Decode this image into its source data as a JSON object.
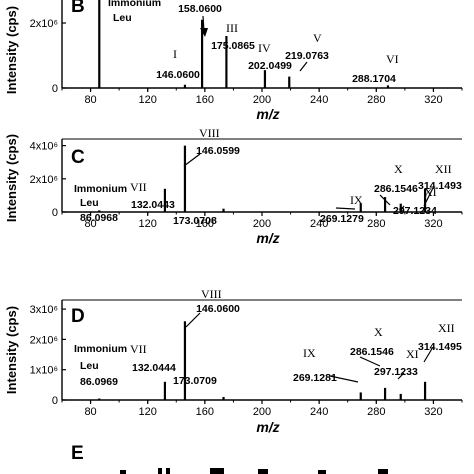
{
  "chart_data": [
    {
      "panel": "B",
      "type": "bar",
      "xlabel": "m/z",
      "ylabel": "Intensity (cps)",
      "xlim": [
        60,
        340
      ],
      "xticks": [
        "80",
        "120",
        "160",
        "200",
        "240",
        "280",
        "320"
      ],
      "ylim": [
        0,
        4.4
      ],
      "yticks": [
        "0",
        "2x10⁶"
      ],
      "peaks": [
        {
          "mz": 86.1,
          "intensity": 4.8
        },
        {
          "mz": 146.06,
          "intensity": 0.1
        },
        {
          "mz": 158.06,
          "intensity": 2.1
        },
        {
          "mz": 175.09,
          "intensity": 1.6
        },
        {
          "mz": 202.05,
          "intensity": 0.55
        },
        {
          "mz": 219.08,
          "intensity": 0.35
        },
        {
          "mz": 288.17,
          "intensity": 0.08
        }
      ],
      "annotations": [
        {
          "id": "immonium",
          "lines": [
            "Immonium",
            "Leu"
          ]
        },
        {
          "id": "p158",
          "roman": "",
          "value": "158.0600"
        },
        {
          "id": "p146",
          "roman": "I",
          "value": "146.0600"
        },
        {
          "id": "p175",
          "roman": "III",
          "value": "175.0865"
        },
        {
          "id": "p202",
          "roman": "IV",
          "value": "202.0499"
        },
        {
          "id": "p219",
          "roman": "V",
          "value": "219.0763"
        },
        {
          "id": "p288",
          "roman": "VI",
          "value": "288.1704"
        }
      ]
    },
    {
      "panel": "C",
      "type": "bar",
      "xlabel": "m/z",
      "ylabel": "Intensity (cps)",
      "xlim": [
        60,
        340
      ],
      "xticks": [
        "80",
        "120",
        "160",
        "200",
        "240",
        "280",
        "320"
      ],
      "ylim": [
        0,
        4.4
      ],
      "yticks": [
        "0",
        "2x10⁶",
        "4x10⁶"
      ],
      "peaks": [
        {
          "mz": 86.1,
          "intensity": 0.1
        },
        {
          "mz": 132.04,
          "intensity": 1.4
        },
        {
          "mz": 146.06,
          "intensity": 4.0
        },
        {
          "mz": 173.07,
          "intensity": 0.2
        },
        {
          "mz": 269.13,
          "intensity": 0.5
        },
        {
          "mz": 286.15,
          "intensity": 0.9
        },
        {
          "mz": 297.12,
          "intensity": 0.5
        },
        {
          "mz": 314.15,
          "intensity": 1.4
        }
      ],
      "annotations": [
        {
          "id": "immonium",
          "lines": [
            "Immonium",
            "Leu",
            "86.0968"
          ]
        },
        {
          "id": "p132",
          "roman": "VII",
          "value": "132.0443"
        },
        {
          "id": "p146",
          "roman": "VIII",
          "value": "146.0599"
        },
        {
          "id": "p173",
          "roman": "",
          "value": "173.0708"
        },
        {
          "id": "p269",
          "roman": "IX",
          "value": "269.1279"
        },
        {
          "id": "p286",
          "roman": "X",
          "value": "286.1546"
        },
        {
          "id": "p297",
          "roman": "XI",
          "value": "297.1234"
        },
        {
          "id": "p314",
          "roman": "XII",
          "value": "314.1493"
        }
      ]
    },
    {
      "panel": "D",
      "type": "bar",
      "xlabel": "m/z",
      "ylabel": "Intensity (cps)",
      "xlim": [
        60,
        340
      ],
      "xticks": [
        "80",
        "120",
        "160",
        "200",
        "240",
        "280",
        "320"
      ],
      "ylim": [
        0,
        3.3
      ],
      "yticks": [
        "0",
        "1x10⁶",
        "2x10⁶",
        "3x10⁶"
      ],
      "peaks": [
        {
          "mz": 86.1,
          "intensity": 0.05
        },
        {
          "mz": 132.04,
          "intensity": 0.6
        },
        {
          "mz": 146.06,
          "intensity": 2.6
        },
        {
          "mz": 173.07,
          "intensity": 0.1
        },
        {
          "mz": 269.13,
          "intensity": 0.25
        },
        {
          "mz": 286.15,
          "intensity": 0.4
        },
        {
          "mz": 297.12,
          "intensity": 0.2
        },
        {
          "mz": 314.15,
          "intensity": 0.6
        }
      ],
      "annotations": [
        {
          "id": "immonium",
          "lines": [
            "Immonium",
            "Leu",
            "86.0969"
          ]
        },
        {
          "id": "p132",
          "roman": "VII",
          "value": "132.0444"
        },
        {
          "id": "p146",
          "roman": "VIII",
          "value": "146.0600"
        },
        {
          "id": "p173",
          "roman": "",
          "value": "173.0709"
        },
        {
          "id": "p269",
          "roman": "IX",
          "value": "269.1281"
        },
        {
          "id": "p286",
          "roman": "X",
          "value": "286.1546"
        },
        {
          "id": "p297",
          "roman": "XI",
          "value": "297.1233"
        },
        {
          "id": "p314",
          "roman": "XII",
          "value": "314.1495"
        }
      ]
    }
  ],
  "panel_e": {
    "letter": "E"
  }
}
